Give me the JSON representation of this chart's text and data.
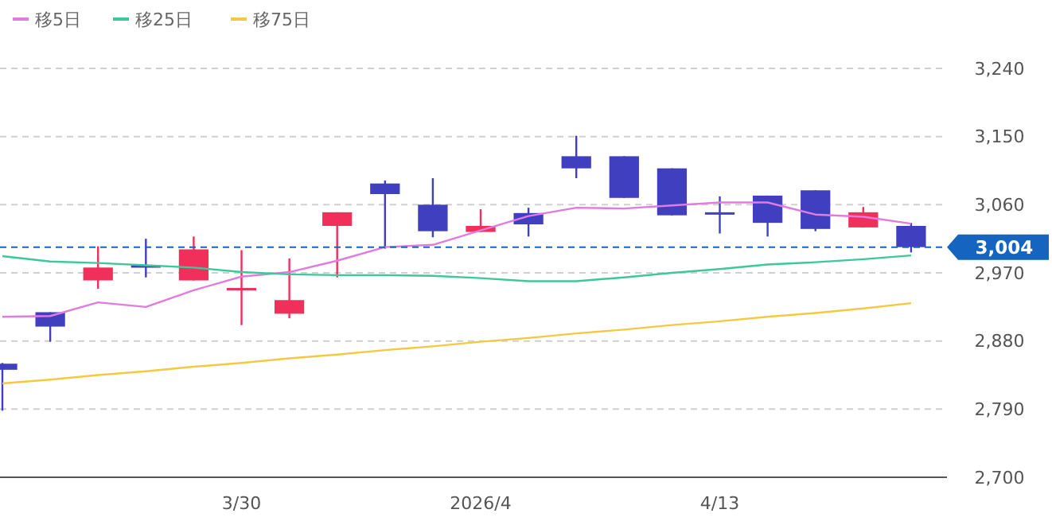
{
  "chart_data": {
    "type": "candlestick",
    "categories": [
      null,
      null,
      null,
      null,
      null,
      "3/30",
      null,
      null,
      null,
      null,
      "2026/4",
      null,
      null,
      null,
      null,
      "4/13",
      null,
      null,
      null,
      null
    ],
    "ohlc": [
      [
        2850,
        2851,
        2788,
        2842
      ],
      [
        2918,
        2918,
        2879,
        2899
      ],
      [
        2960,
        3005,
        2949,
        2977
      ],
      [
        2980,
        3015,
        2964,
        2979
      ],
      [
        2960,
        3018,
        2960,
        3001
      ],
      [
        2947,
        3000,
        2901,
        2950
      ],
      [
        2916,
        2989,
        2910,
        2934
      ],
      [
        3032,
        3050,
        2964,
        3050
      ],
      [
        3088,
        3092,
        3002,
        3074
      ],
      [
        3060,
        3095,
        3017,
        3025
      ],
      [
        3024,
        3054,
        3024,
        3032
      ],
      [
        3049,
        3056,
        3018,
        3034
      ],
      [
        3124,
        3151,
        3095,
        3108
      ],
      [
        3124,
        3124,
        3069,
        3069
      ],
      [
        3108,
        3108,
        3046,
        3046
      ],
      [
        3050,
        3071,
        3022,
        3047
      ],
      [
        3072,
        3072,
        3018,
        3036
      ],
      [
        3079,
        3079,
        3025,
        3028
      ],
      [
        3030,
        3057,
        3030,
        3050
      ],
      [
        3032,
        3036,
        2997,
        3004
      ]
    ],
    "colors": [
      "#3f3fbf",
      "#3f3fbf",
      "#f0305a",
      "#3f3fbf",
      "#f0305a",
      "#f0305a",
      "#f0305a",
      "#f0305a",
      "#3f3fbf",
      "#3f3fbf",
      "#f0305a",
      "#3f3fbf",
      "#3f3fbf",
      "#3f3fbf",
      "#3f3fbf",
      "#3f3fbf",
      "#3f3fbf",
      "#3f3fbf",
      "#f0305a",
      "#3f3fbf"
    ],
    "series": [
      {
        "type": "line",
        "name": "移5日",
        "color": "#e07be0",
        "values": [
          2912,
          2913,
          2931,
          2925,
          2947,
          2965,
          2971,
          2986,
          3004,
          3007,
          3026,
          3045,
          3056,
          3055,
          3059,
          3063,
          3063,
          3047,
          3044,
          3035
        ]
      },
      {
        "type": "line",
        "name": "移25日",
        "color": "#3cc89a",
        "values": [
          2992,
          2985,
          2983,
          2980,
          2977,
          2971,
          2968,
          2967,
          2967,
          2966,
          2963,
          2959,
          2959,
          2964,
          2970,
          2975,
          2981,
          2984,
          2988,
          2993
        ]
      },
      {
        "type": "line",
        "name": "移75日",
        "color": "#f5c842",
        "values": [
          2824,
          2829,
          2835,
          2840,
          2846,
          2851,
          2857,
          2862,
          2868,
          2873,
          2879,
          2884,
          2890,
          2895,
          2901,
          2906,
          2912,
          2917,
          2923,
          2930
        ]
      }
    ],
    "ylim": [
      2700,
      3240
    ],
    "yticks": [
      {
        "value": 2700,
        "label": "2,700"
      },
      {
        "value": 2790,
        "label": "2,790"
      },
      {
        "value": 2880,
        "label": "2,880"
      },
      {
        "value": 2970,
        "label": "2,970"
      },
      {
        "value": 3060,
        "label": "3,060"
      },
      {
        "value": 3150,
        "label": "3,150"
      },
      {
        "value": 3240,
        "label": "3,240"
      }
    ],
    "grid": "y",
    "legend": "top left",
    "ref_lines": [
      {
        "axis": "y",
        "value": 3004,
        "label": "3,004",
        "color": "#1565c0",
        "line_style": "dashed"
      }
    ]
  }
}
